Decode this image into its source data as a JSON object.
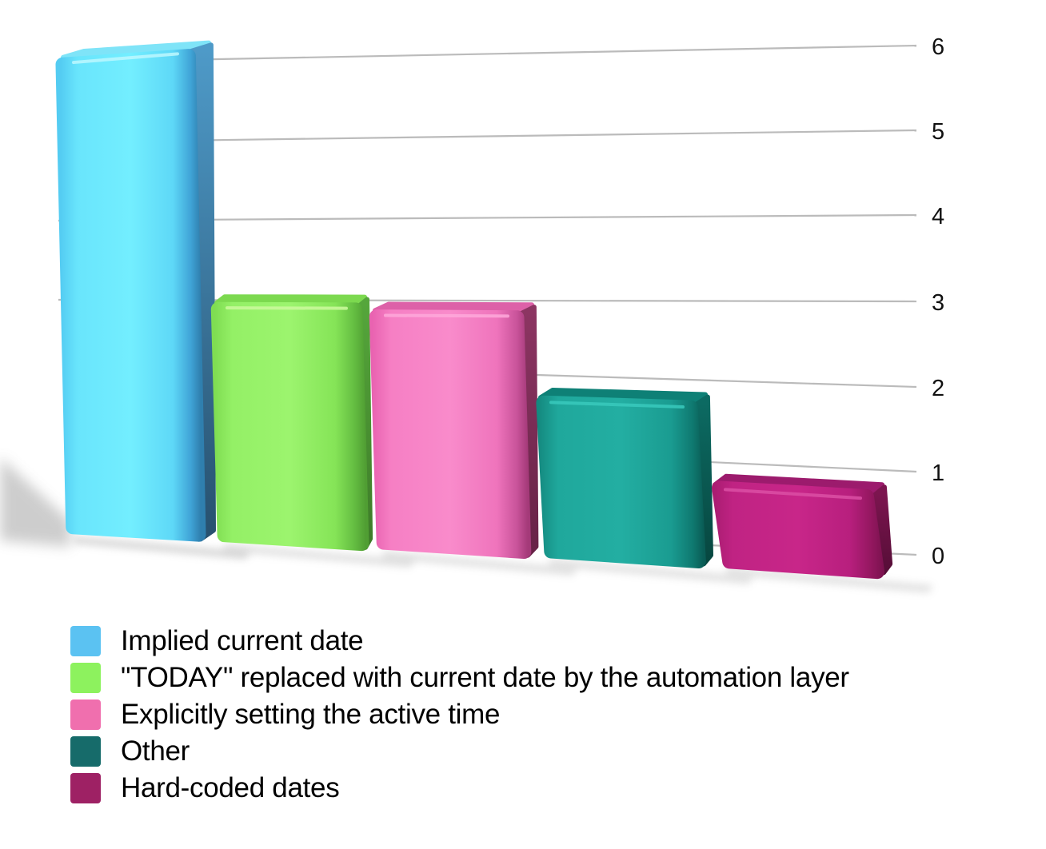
{
  "chart_data": {
    "type": "bar",
    "title": "",
    "xlabel": "",
    "ylabel": "",
    "categories": [
      "Implied current date",
      "\"TODAY\" replaced with current date by the automation layer",
      "Explicitly setting the active time",
      "Other",
      "Hard-coded dates"
    ],
    "values": [
      6,
      3,
      3,
      2,
      1
    ],
    "ylim": [
      0,
      6
    ],
    "yticks": [
      0,
      1,
      2,
      3,
      4,
      5,
      6
    ],
    "grid": true,
    "axis_side": "right",
    "legend_position": "bottom-left",
    "style": "3d-perspective",
    "gridline_color": "#bbbbbb",
    "tick_color": "#111111",
    "background_color": "#ffffff",
    "series_colors": [
      {
        "swatch": "#5BC2F2",
        "front": [
          "#54CCF2",
          "#69E5FC",
          "#73EEFF",
          "#5ED8F7",
          "#3FA3D6",
          "#2F7FAE"
        ],
        "side_top": "#4E9AC8",
        "side_bottom": "#27506E",
        "top": "#7FE4F8",
        "highlight": "#BDF8FF"
      },
      {
        "swatch": "#8DF25E",
        "front": [
          "#7FDD52",
          "#94F066",
          "#9CF46E",
          "#85E457",
          "#63BC41",
          "#509E33"
        ],
        "side_top": "#55A63B",
        "side_bottom": "#3D7A28",
        "top": "#7CD94F",
        "highlight": "#CDFA9E"
      },
      {
        "swatch": "#F06FAE",
        "front": [
          "#E963B1",
          "#F67FC4",
          "#F98BCB",
          "#EF74BC",
          "#C9539A",
          "#A43A79"
        ],
        "side_top": "#8C3562",
        "side_bottom": "#662246",
        "top": "#DD61A8",
        "highlight": "#FFA9DB"
      },
      {
        "swatch": "#166B6A",
        "front": [
          "#14897F",
          "#1FA89C",
          "#23AEA2",
          "#1A9C91",
          "#0F7A71",
          "#0A5C55"
        ],
        "side_top": "#0C6A62",
        "side_bottom": "#07463F",
        "top": "#0E8076",
        "highlight": "#39CABD"
      },
      {
        "swatch": "#9E2164",
        "front": [
          "#A81C70",
          "#C02383",
          "#C82689",
          "#B81F7E",
          "#93175F",
          "#7A124E"
        ],
        "side_top": "#7C154F",
        "side_bottom": "#540D36",
        "top": "#9C1B6D",
        "highlight": "#DC4FA5"
      }
    ]
  }
}
